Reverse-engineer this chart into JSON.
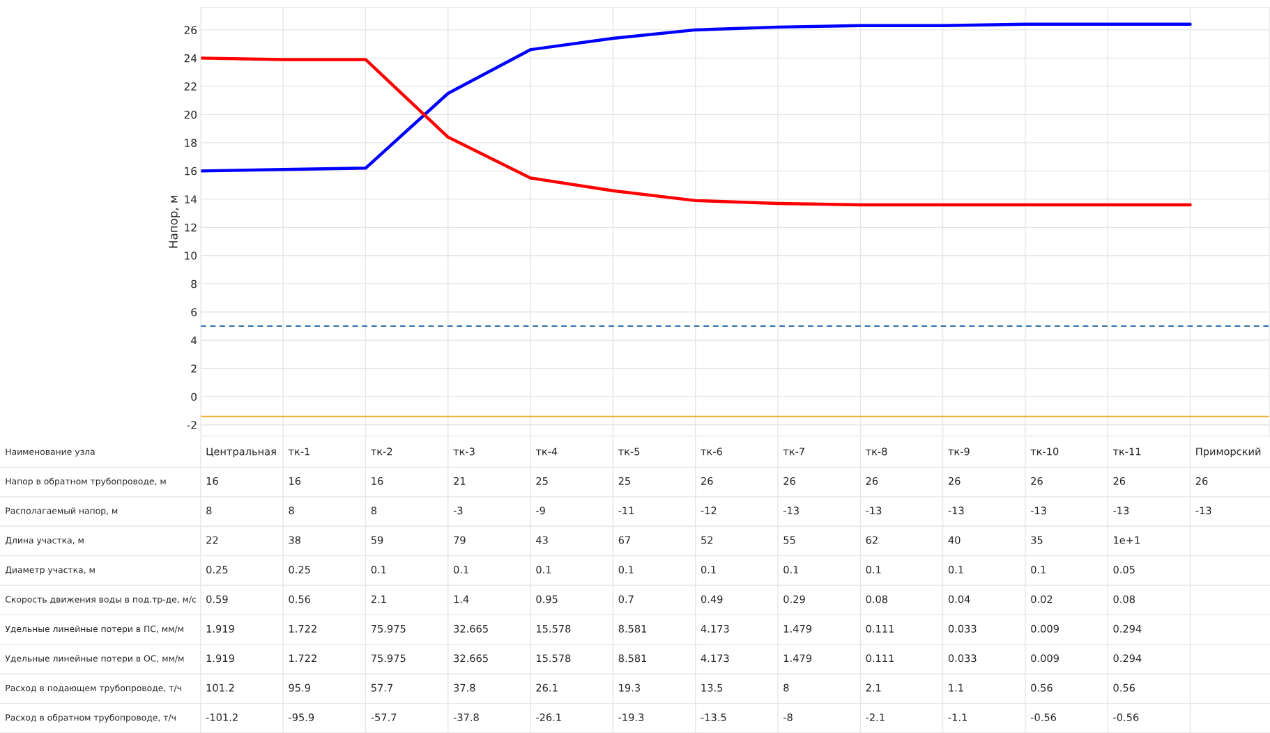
{
  "chart_data": [
    {
      "type": "line",
      "ylabel": "Напор, м",
      "categories": [
        null,
        null,
        null,
        null,
        null,
        null,
        null,
        null,
        null,
        null,
        null,
        null,
        null
      ],
      "series": [
        {
          "color": "#0000ff",
          "values": [
            16,
            16.1,
            16.2,
            21.5,
            24.6,
            25.4,
            26.0,
            26.2,
            26.3,
            26.3,
            26.4,
            26.4,
            26.4
          ]
        },
        {
          "color": "#ff0000",
          "values": [
            24,
            23.9,
            23.9,
            18.4,
            15.5,
            14.6,
            13.9,
            13.7,
            13.6,
            13.6,
            13.6,
            13.6,
            13.6
          ]
        }
      ],
      "ylim": [
        -2.8,
        27.6
      ],
      "yticks": [
        -2,
        0,
        2,
        4,
        6,
        8,
        10,
        12,
        14,
        16,
        18,
        20,
        22,
        24,
        26
      ],
      "grid": true,
      "tick_labels": "y",
      "line_style": "solid",
      "marker": "none",
      "ref_lines": [
        {
          "axis": "y",
          "value": 5,
          "color": "#2e6fb0",
          "line_style": "dashed"
        },
        {
          "axis": "y",
          "value": -1.4,
          "color": "#f5a623",
          "line_style": "solid"
        }
      ]
    },
    {
      "type": "other",
      "y_categories": [
        "Наименование узла",
        "Напор в обратном трубопроводе, м",
        "Располагаемый напор, м",
        "Длина участка, м",
        "Диаметр участка, м",
        "Скорость движения воды в под.тр-де, м/с",
        "Удельные линейные потери в ПС, мм/м",
        "Удельные линейные потери в ОС, мм/м",
        "Расход в подающем трубопроводе, т/ч",
        "Расход в обратном трубопроводе, т/ч"
      ],
      "cell_labels": [
        [
          "Центральная",
          "тк-1",
          "тк-2",
          "тк-3",
          "тк-4",
          "тк-5",
          "тк-6",
          "тк-7",
          "тк-8",
          "тк-9",
          "тк-10",
          "тк-11",
          "Приморский"
        ],
        [
          "16",
          "16",
          "16",
          "21",
          "25",
          "25",
          "26",
          "26",
          "26",
          "26",
          "26",
          "26",
          "26"
        ],
        [
          "8",
          "8",
          "8",
          "-3",
          "-9",
          "-11",
          "-12",
          "-13",
          "-13",
          "-13",
          "-13",
          "-13",
          "-13"
        ],
        [
          "22",
          "38",
          "59",
          "79",
          "43",
          "67",
          "52",
          "55",
          "62",
          "40",
          "35",
          "1e+1",
          null
        ],
        [
          "0.25",
          "0.25",
          "0.1",
          "0.1",
          "0.1",
          "0.1",
          "0.1",
          "0.1",
          "0.1",
          "0.1",
          "0.1",
          "0.05",
          null
        ],
        [
          "0.59",
          "0.56",
          "2.1",
          "1.4",
          "0.95",
          "0.7",
          "0.49",
          "0.29",
          "0.08",
          "0.04",
          "0.02",
          "0.08",
          null
        ],
        [
          "1.919",
          "1.722",
          "75.975",
          "32.665",
          "15.578",
          "8.581",
          "4.173",
          "1.479",
          "0.111",
          "0.033",
          "0.009",
          "0.294",
          null
        ],
        [
          "1.919",
          "1.722",
          "75.975",
          "32.665",
          "15.578",
          "8.581",
          "4.173",
          "1.479",
          "0.111",
          "0.033",
          "0.009",
          "0.294",
          null
        ],
        [
          "101.2",
          "95.9",
          "57.7",
          "37.8",
          "26.1",
          "19.3",
          "13.5",
          "8",
          "2.1",
          "1.1",
          "0.56",
          "0.56",
          null
        ],
        [
          "-101.2",
          "-95.9",
          "-57.7",
          "-37.8",
          "-26.1",
          "-19.3",
          "-13.5",
          "-8",
          "-2.1",
          "-1.1",
          "-0.56",
          "-0.56",
          null
        ]
      ]
    }
  ]
}
